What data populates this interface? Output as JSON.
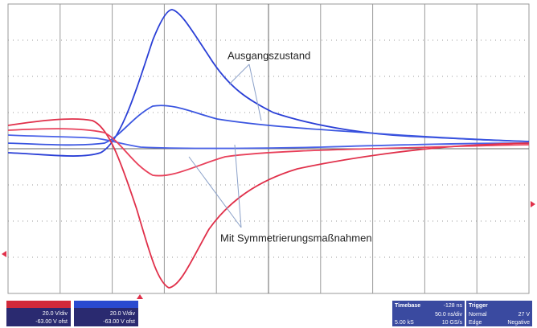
{
  "annotations": {
    "upper": "Ausgangszustand",
    "lower": "Mit Symmetrierungsmaßnahmen"
  },
  "channels": [
    {
      "scale": "20.0 V/div",
      "offset": "-63.00 V ofst"
    },
    {
      "scale": "20.0 V/div",
      "offset": "-63.00 V ofst"
    }
  ],
  "timebase": {
    "label": "Timebase",
    "delay": "-128 ns",
    "scale": "50.0 ns/div",
    "samples": "5.00 kS",
    "rate": "10 GS/s"
  },
  "trigger": {
    "label": "Trigger",
    "mode": "Normal",
    "level": "27 V",
    "type": "Edge",
    "slope": "Negative"
  }
}
